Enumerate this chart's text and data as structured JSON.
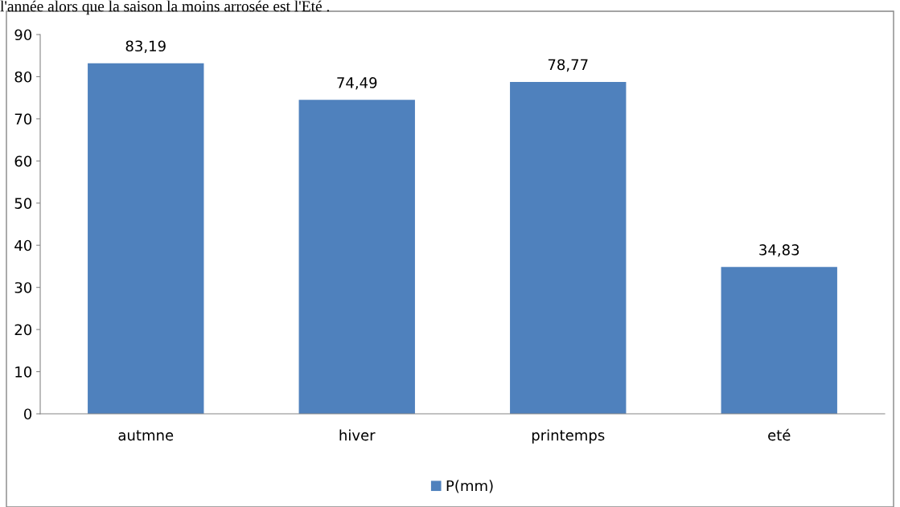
{
  "chart_data": {
    "type": "bar",
    "categories": [
      "autmne",
      "hiver",
      "printemps",
      "eté"
    ],
    "series": [
      {
        "name": "P(mm)",
        "color": "#4f81bd",
        "values": [
          83.19,
          74.49,
          78.77,
          34.83
        ]
      }
    ],
    "value_labels": [
      "83,19",
      "74,49",
      "78,77",
      "34,83"
    ],
    "ylim": [
      0,
      90
    ],
    "yticks": [
      0,
      10,
      20,
      30,
      40,
      50,
      60,
      70,
      80,
      90
    ],
    "grid": false,
    "legend": "bottom",
    "annotations": [
      "l'année alors que la saison la moins arrosée est l'Eté ."
    ]
  }
}
